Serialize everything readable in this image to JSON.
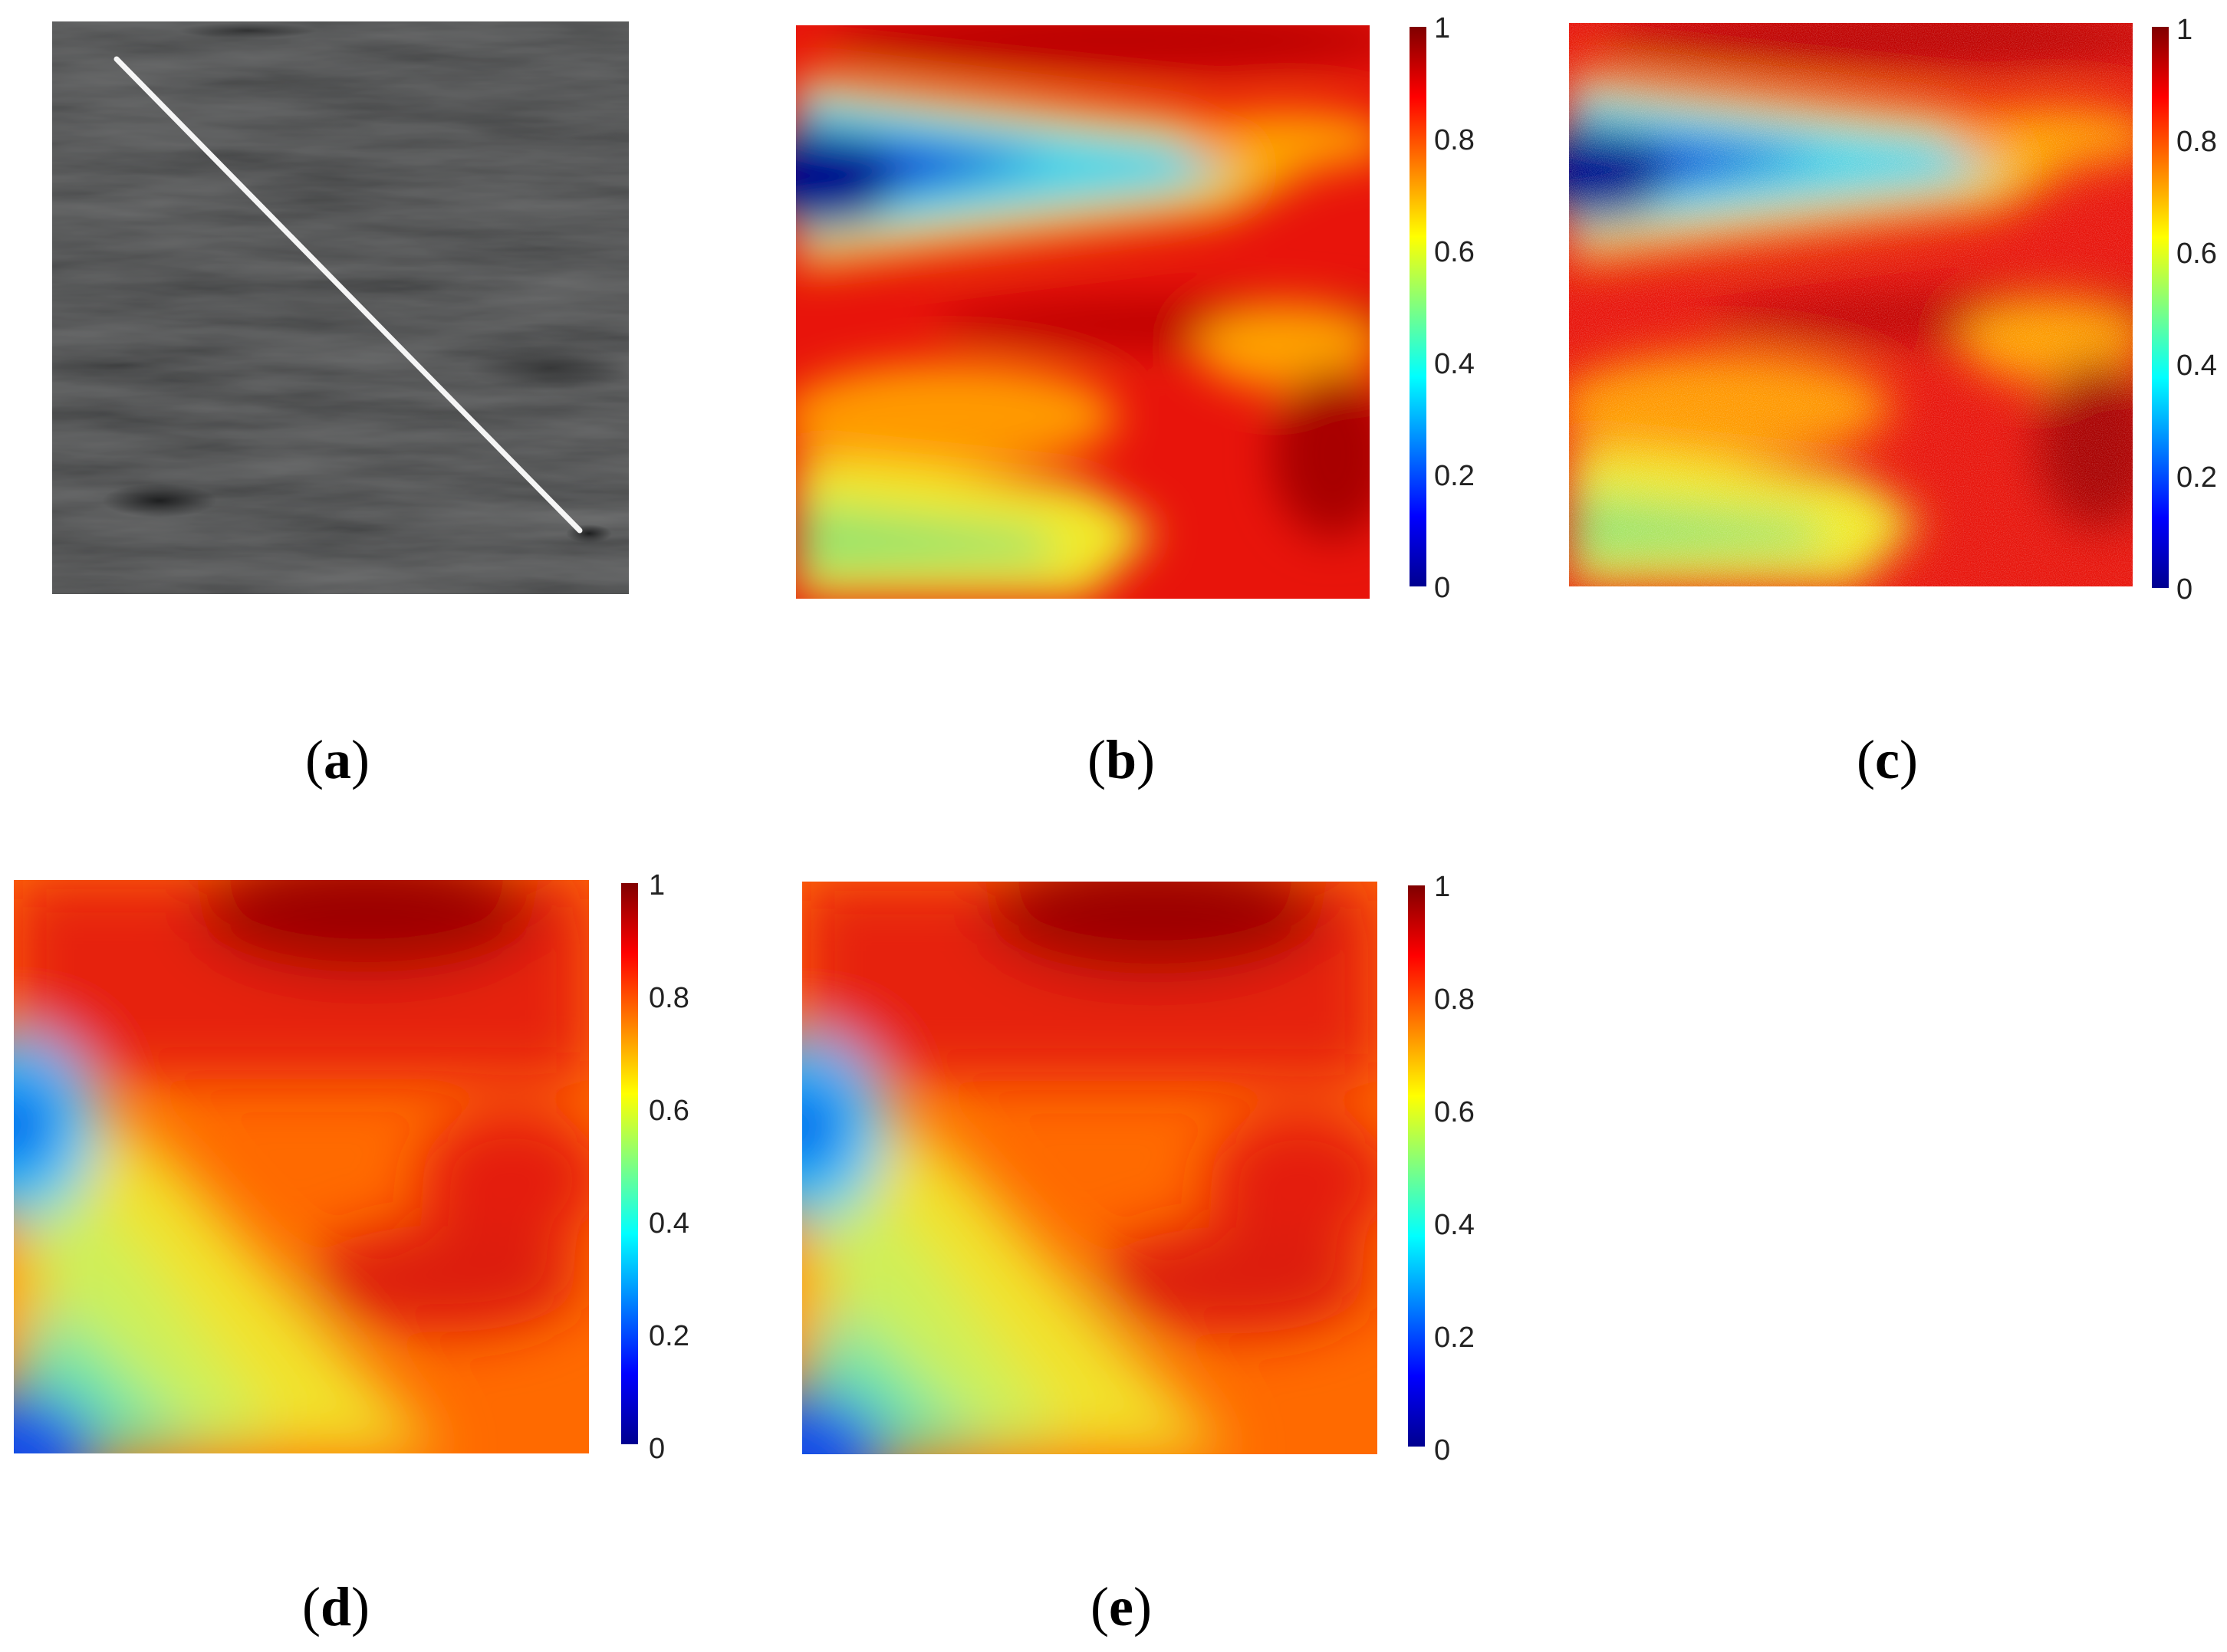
{
  "colormap": "jet",
  "colorbar": {
    "ticks": [
      "0",
      "0.2",
      "0.4",
      "0.6",
      "0.8",
      "1"
    ],
    "range": [
      0,
      1
    ]
  },
  "panels": [
    {
      "id": "a",
      "label": "a",
      "kind": "grayscale-terrain",
      "overlay": "diagonal-profile-line",
      "line_color": "#ffffff"
    },
    {
      "id": "b",
      "label": "b",
      "kind": "heatmap",
      "texture": "smooth"
    },
    {
      "id": "c",
      "label": "c",
      "kind": "heatmap",
      "texture": "noisy"
    },
    {
      "id": "d",
      "label": "d",
      "kind": "heatmap",
      "texture": "smooth"
    },
    {
      "id": "e",
      "label": "e",
      "kind": "heatmap",
      "texture": "smooth"
    }
  ]
}
